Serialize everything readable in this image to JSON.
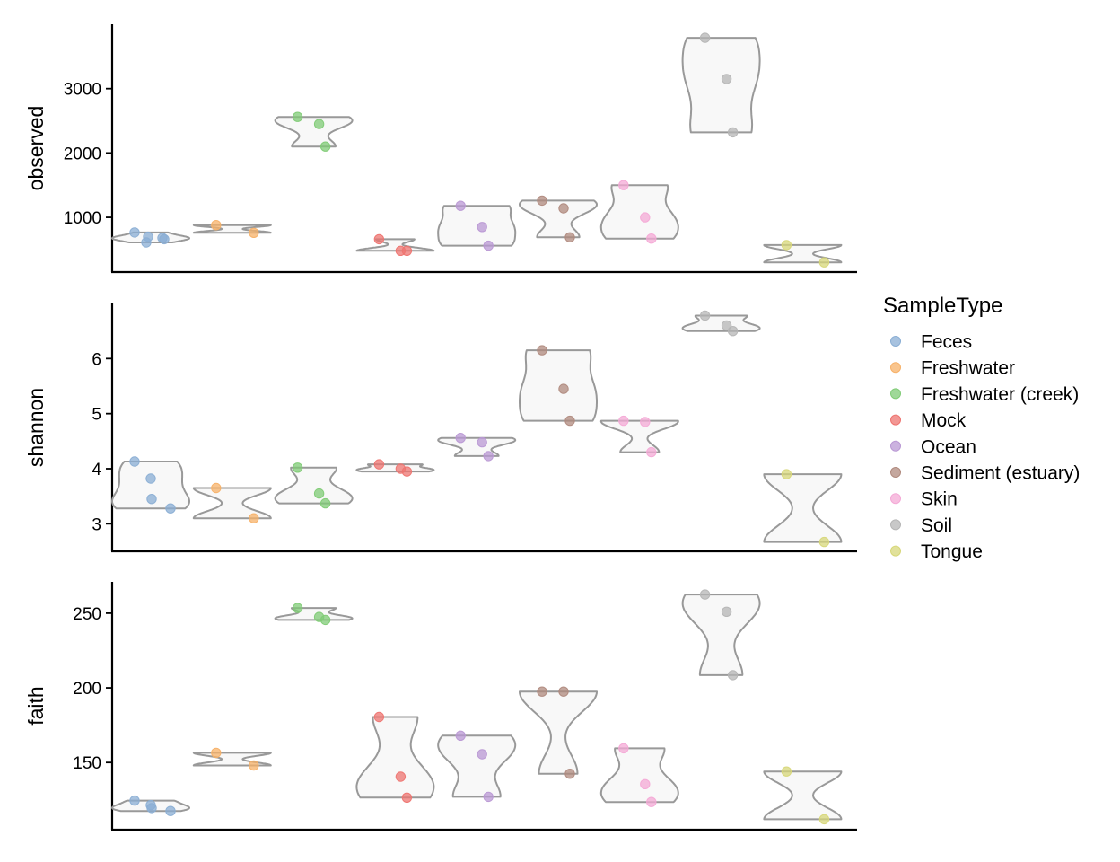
{
  "chart_data": {
    "type": "violin",
    "layout": "faceted-rows",
    "categories": [
      "Feces",
      "Freshwater",
      "Freshwater (creek)",
      "Mock",
      "Ocean",
      "Sediment (estuary)",
      "Skin",
      "Soil",
      "Tongue"
    ],
    "colors": {
      "Feces": "#8aaed4",
      "Freshwater": "#f7b168",
      "Freshwater (creek)": "#7fcb75",
      "Mock": "#ee7470",
      "Ocean": "#b998d4",
      "Sediment (estuary)": "#b08a7e",
      "Skin": "#f4a9d6",
      "Soil": "#b5b5b5",
      "Tongue": "#d7d779"
    },
    "legend": {
      "title": "SampleType",
      "position": "right"
    },
    "panels": [
      {
        "metric": "observed",
        "ylabel": "observed",
        "ylim": [
          150,
          4000
        ],
        "yticks": [
          1000,
          2000,
          3000
        ],
        "tick_labels": [
          "1000",
          "2000",
          "3000"
        ],
        "points": {
          "Feces": [
            765,
            700,
            610,
            680,
            660
          ],
          "Freshwater": [
            880,
            760
          ],
          "Freshwater (creek)": [
            2560,
            2450,
            2100
          ],
          "Mock": [
            660,
            480,
            480
          ],
          "Ocean": [
            1180,
            850,
            560
          ],
          "Sediment (estuary)": [
            1260,
            1140,
            690
          ],
          "Skin": [
            1500,
            1000,
            670
          ],
          "Soil": [
            3790,
            3150,
            2320
          ],
          "Tongue": [
            570,
            300
          ]
        }
      },
      {
        "metric": "shannon",
        "ylabel": "shannon",
        "ylim": [
          2.5,
          7.0
        ],
        "yticks": [
          3,
          4,
          5,
          6
        ],
        "tick_labels": [
          "3",
          "4",
          "5",
          "6"
        ],
        "points": {
          "Feces": [
            4.13,
            3.82,
            3.45,
            3.28
          ],
          "Freshwater": [
            3.65,
            3.1
          ],
          "Freshwater (creek)": [
            4.02,
            3.55,
            3.37
          ],
          "Mock": [
            4.08,
            4.0,
            3.95
          ],
          "Ocean": [
            4.56,
            4.48,
            4.23
          ],
          "Sediment (estuary)": [
            6.15,
            5.45,
            4.87
          ],
          "Skin": [
            4.87,
            4.85,
            4.3
          ],
          "Soil": [
            6.78,
            6.6,
            6.5
          ],
          "Tongue": [
            3.9,
            2.67
          ]
        }
      },
      {
        "metric": "faith",
        "ylabel": "faith",
        "ylim": [
          105,
          271
        ],
        "yticks": [
          150,
          200,
          250
        ],
        "tick_labels": [
          "150",
          "200",
          "250"
        ],
        "points": {
          "Feces": [
            124.5,
            121.5,
            119.5,
            117.5
          ],
          "Freshwater": [
            156.5,
            148
          ],
          "Freshwater (creek)": [
            253.5,
            247.5,
            245.5
          ],
          "Mock": [
            180.5,
            140.5,
            126.5
          ],
          "Ocean": [
            168,
            155.5,
            127
          ],
          "Sediment (estuary)": [
            197.5,
            197.5,
            142.5
          ],
          "Skin": [
            159.5,
            135.5,
            123.5
          ],
          "Soil": [
            262.5,
            251,
            208.5
          ],
          "Tongue": [
            144,
            112
          ]
        }
      }
    ]
  }
}
